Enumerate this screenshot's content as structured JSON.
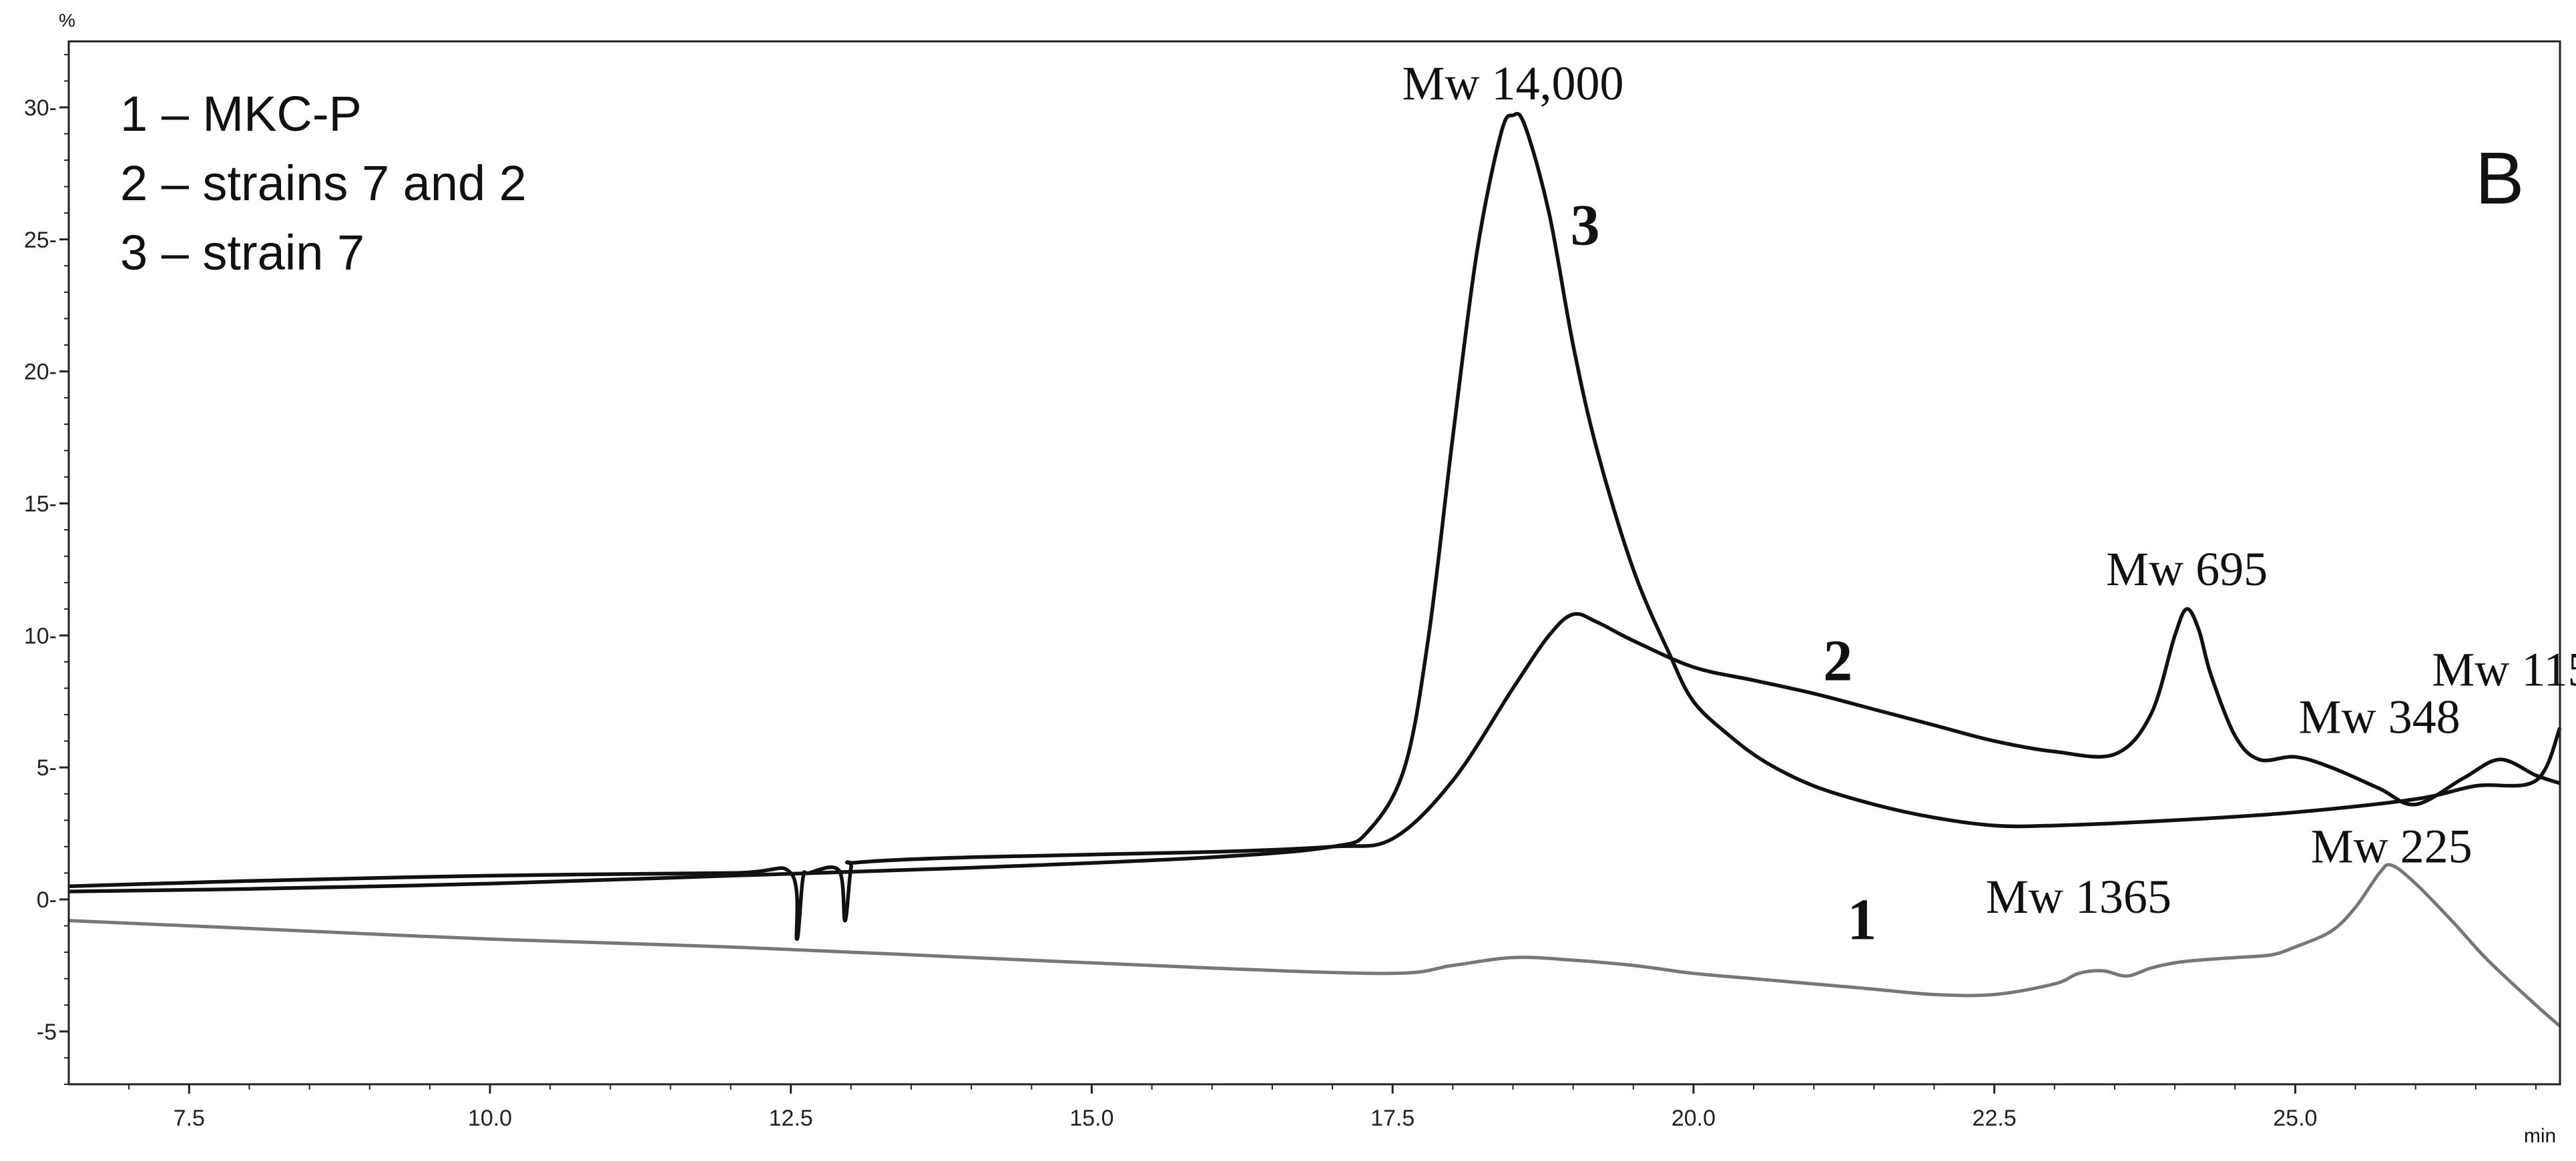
{
  "chart_data": {
    "type": "line",
    "title": "",
    "panel_label": "B",
    "y_unit_label": "%",
    "x_unit_label": "min",
    "xlim": [
      6.5,
      27.2
    ],
    "ylim": [
      -7.0,
      32.5
    ],
    "x_ticks": [
      7.5,
      10.0,
      12.5,
      15.0,
      17.5,
      20.0,
      22.5,
      25.0
    ],
    "x_tick_labels": [
      "7.5",
      "10.0",
      "12.5",
      "15.0",
      "17.5",
      "20.0",
      "22.5",
      "25.0"
    ],
    "y_ticks": [
      -5,
      0,
      5,
      10,
      15,
      20,
      25,
      30
    ],
    "y_tick_labels": [
      "-5",
      "0-",
      "5-",
      "10-",
      "15-",
      "20-",
      "25-",
      "30-"
    ],
    "legend_lines": [
      "1 – MKC-P",
      "2 – strains  7 and 2",
      "3 – strain  7"
    ],
    "series": [
      {
        "name": "1",
        "color": "#777777",
        "x": [
          6.5,
          8.0,
          10.0,
          12.0,
          14.0,
          16.0,
          17.5,
          18.0,
          18.5,
          19.0,
          19.5,
          20.0,
          20.5,
          21.0,
          21.5,
          22.0,
          22.5,
          23.0,
          23.2,
          23.4,
          23.6,
          23.8,
          24.0,
          24.2,
          24.5,
          24.8,
          25.0,
          25.3,
          25.5,
          25.7,
          25.8,
          26.0,
          26.3,
          26.6,
          27.0,
          27.2
        ],
        "y": [
          -0.8,
          -1.1,
          -1.5,
          -1.8,
          -2.2,
          -2.6,
          -2.8,
          -2.5,
          -2.2,
          -2.3,
          -2.5,
          -2.8,
          -3.0,
          -3.2,
          -3.4,
          -3.6,
          -3.6,
          -3.2,
          -2.8,
          -2.7,
          -2.9,
          -2.6,
          -2.4,
          -2.3,
          -2.2,
          -2.1,
          -1.8,
          -1.2,
          -0.3,
          1.0,
          1.3,
          0.6,
          -0.8,
          -2.3,
          -4.0,
          -4.8
        ]
      },
      {
        "name": "2",
        "color": "#111111",
        "x": [
          6.5,
          8.0,
          10.0,
          12.0,
          12.5,
          12.55,
          12.6,
          12.65,
          12.9,
          12.95,
          13.0,
          13.05,
          14.0,
          16.0,
          17.0,
          17.5,
          18.0,
          18.5,
          18.8,
          19.0,
          19.2,
          19.5,
          20.0,
          20.5,
          21.0,
          21.5,
          22.0,
          22.5,
          23.0,
          23.5,
          23.8,
          24.0,
          24.1,
          24.2,
          24.3,
          24.5,
          24.7,
          25.0,
          25.3,
          25.7,
          26.0,
          26.4,
          26.7,
          27.0,
          27.2
        ],
        "y": [
          0.5,
          0.7,
          0.9,
          1.0,
          1.0,
          -1.5,
          0.8,
          1.0,
          1.1,
          -0.8,
          1.2,
          1.4,
          1.6,
          1.8,
          2.0,
          2.3,
          4.5,
          8.0,
          10.0,
          10.8,
          10.5,
          9.8,
          8.8,
          8.3,
          7.8,
          7.2,
          6.6,
          6.0,
          5.6,
          5.5,
          7.0,
          10.0,
          11.0,
          10.2,
          8.5,
          6.2,
          5.3,
          5.4,
          5.0,
          4.2,
          3.6,
          4.6,
          5.3,
          4.7,
          4.4
        ]
      },
      {
        "name": "3",
        "color": "#111111",
        "x": [
          6.5,
          8.0,
          10.0,
          12.0,
          14.0,
          16.0,
          17.0,
          17.3,
          17.6,
          17.8,
          18.0,
          18.2,
          18.4,
          18.5,
          18.6,
          18.8,
          19.0,
          19.2,
          19.5,
          19.8,
          20.0,
          20.3,
          20.6,
          21.0,
          21.5,
          22.0,
          22.5,
          23.0,
          24.0,
          25.0,
          26.0,
          26.5,
          27.0,
          27.2
        ],
        "y": [
          0.3,
          0.4,
          0.6,
          0.9,
          1.2,
          1.6,
          2.0,
          2.6,
          5.0,
          10.0,
          17.5,
          24.5,
          29.0,
          29.7,
          29.3,
          26.0,
          21.0,
          17.0,
          12.5,
          9.3,
          7.5,
          6.2,
          5.2,
          4.3,
          3.6,
          3.1,
          2.8,
          2.8,
          3.0,
          3.3,
          3.8,
          4.3,
          4.5,
          6.5
        ]
      }
    ],
    "annotations": [
      {
        "text": "Mw 14,000",
        "x": 18.5,
        "y": 30.3
      },
      {
        "text": "Mw 695",
        "x": 24.1,
        "y": 11.9
      },
      {
        "text": "Mw 348",
        "x": 25.7,
        "y": 6.3
      },
      {
        "text": "Mw 115",
        "x": 26.8,
        "y": 8.1
      },
      {
        "text": "Mw 225",
        "x": 25.8,
        "y": 1.4
      },
      {
        "text": "Mw 1365",
        "x": 23.2,
        "y": -0.5
      },
      {
        "text": "3",
        "x": 19.1,
        "y": 24.8,
        "bold": true
      },
      {
        "text": "2",
        "x": 21.2,
        "y": 8.3,
        "bold": true
      },
      {
        "text": "1",
        "x": 21.4,
        "y": -1.5,
        "bold": true
      }
    ]
  }
}
